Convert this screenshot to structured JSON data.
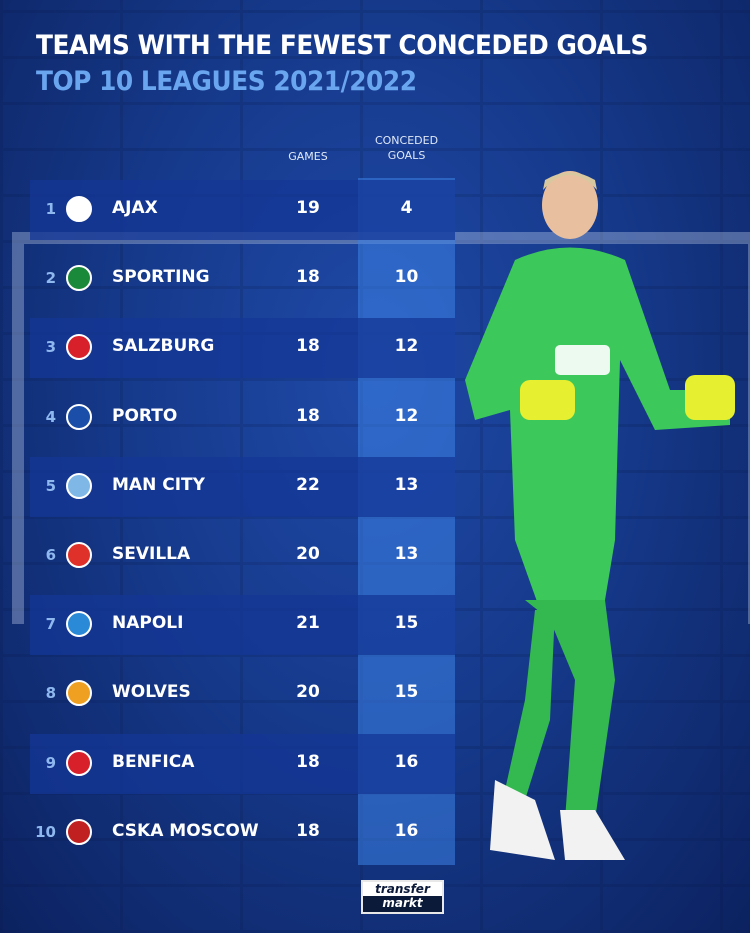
{
  "title": "TEAMS WITH THE FEWEST CONCEDED GOALS",
  "subtitle": "TOP 10 LEAGUES 2021/2022",
  "columns": {
    "games": "GAMES",
    "conceded": [
      "CONCEDED",
      "GOALS"
    ]
  },
  "colors": {
    "background": "#163a8c",
    "highlight": "#3c82e6",
    "subtitle": "#6aa6f0"
  },
  "chart_data": {
    "type": "table",
    "title": "TEAMS WITH THE FEWEST CONCEDED GOALS",
    "subtitle": "TOP 10 LEAGUES 2021/2022",
    "headers": [
      "",
      "",
      "GAMES",
      "CONCEDED GOALS"
    ],
    "rows": [
      {
        "rank": "1",
        "team": "AJAX",
        "games": "19",
        "goals": "4",
        "crest": "#ffffff"
      },
      {
        "rank": "2",
        "team": "SPORTING",
        "games": "18",
        "goals": "10",
        "crest": "#1a8a3a"
      },
      {
        "rank": "3",
        "team": "SALZBURG",
        "games": "18",
        "goals": "12",
        "crest": "#d8202a"
      },
      {
        "rank": "4",
        "team": "PORTO",
        "games": "18",
        "goals": "12",
        "crest": "#1a4ea8"
      },
      {
        "rank": "5",
        "team": "MAN CITY",
        "games": "22",
        "goals": "13",
        "crest": "#7fb8e6"
      },
      {
        "rank": "6",
        "team": "SEVILLA",
        "games": "20",
        "goals": "13",
        "crest": "#e0302a"
      },
      {
        "rank": "7",
        "team": "NAPOLI",
        "games": "21",
        "goals": "15",
        "crest": "#2a8ad8"
      },
      {
        "rank": "8",
        "team": "WOLVES",
        "games": "20",
        "goals": "15",
        "crest": "#f0a020"
      },
      {
        "rank": "9",
        "team": "BENFICA",
        "games": "18",
        "goals": "16",
        "crest": "#d8202a"
      },
      {
        "rank": "10",
        "team": "CSKA MOSCOW",
        "games": "18",
        "goals": "16",
        "crest": "#c02020"
      }
    ]
  },
  "logo": {
    "line1": "transfer",
    "line2": "markt"
  }
}
